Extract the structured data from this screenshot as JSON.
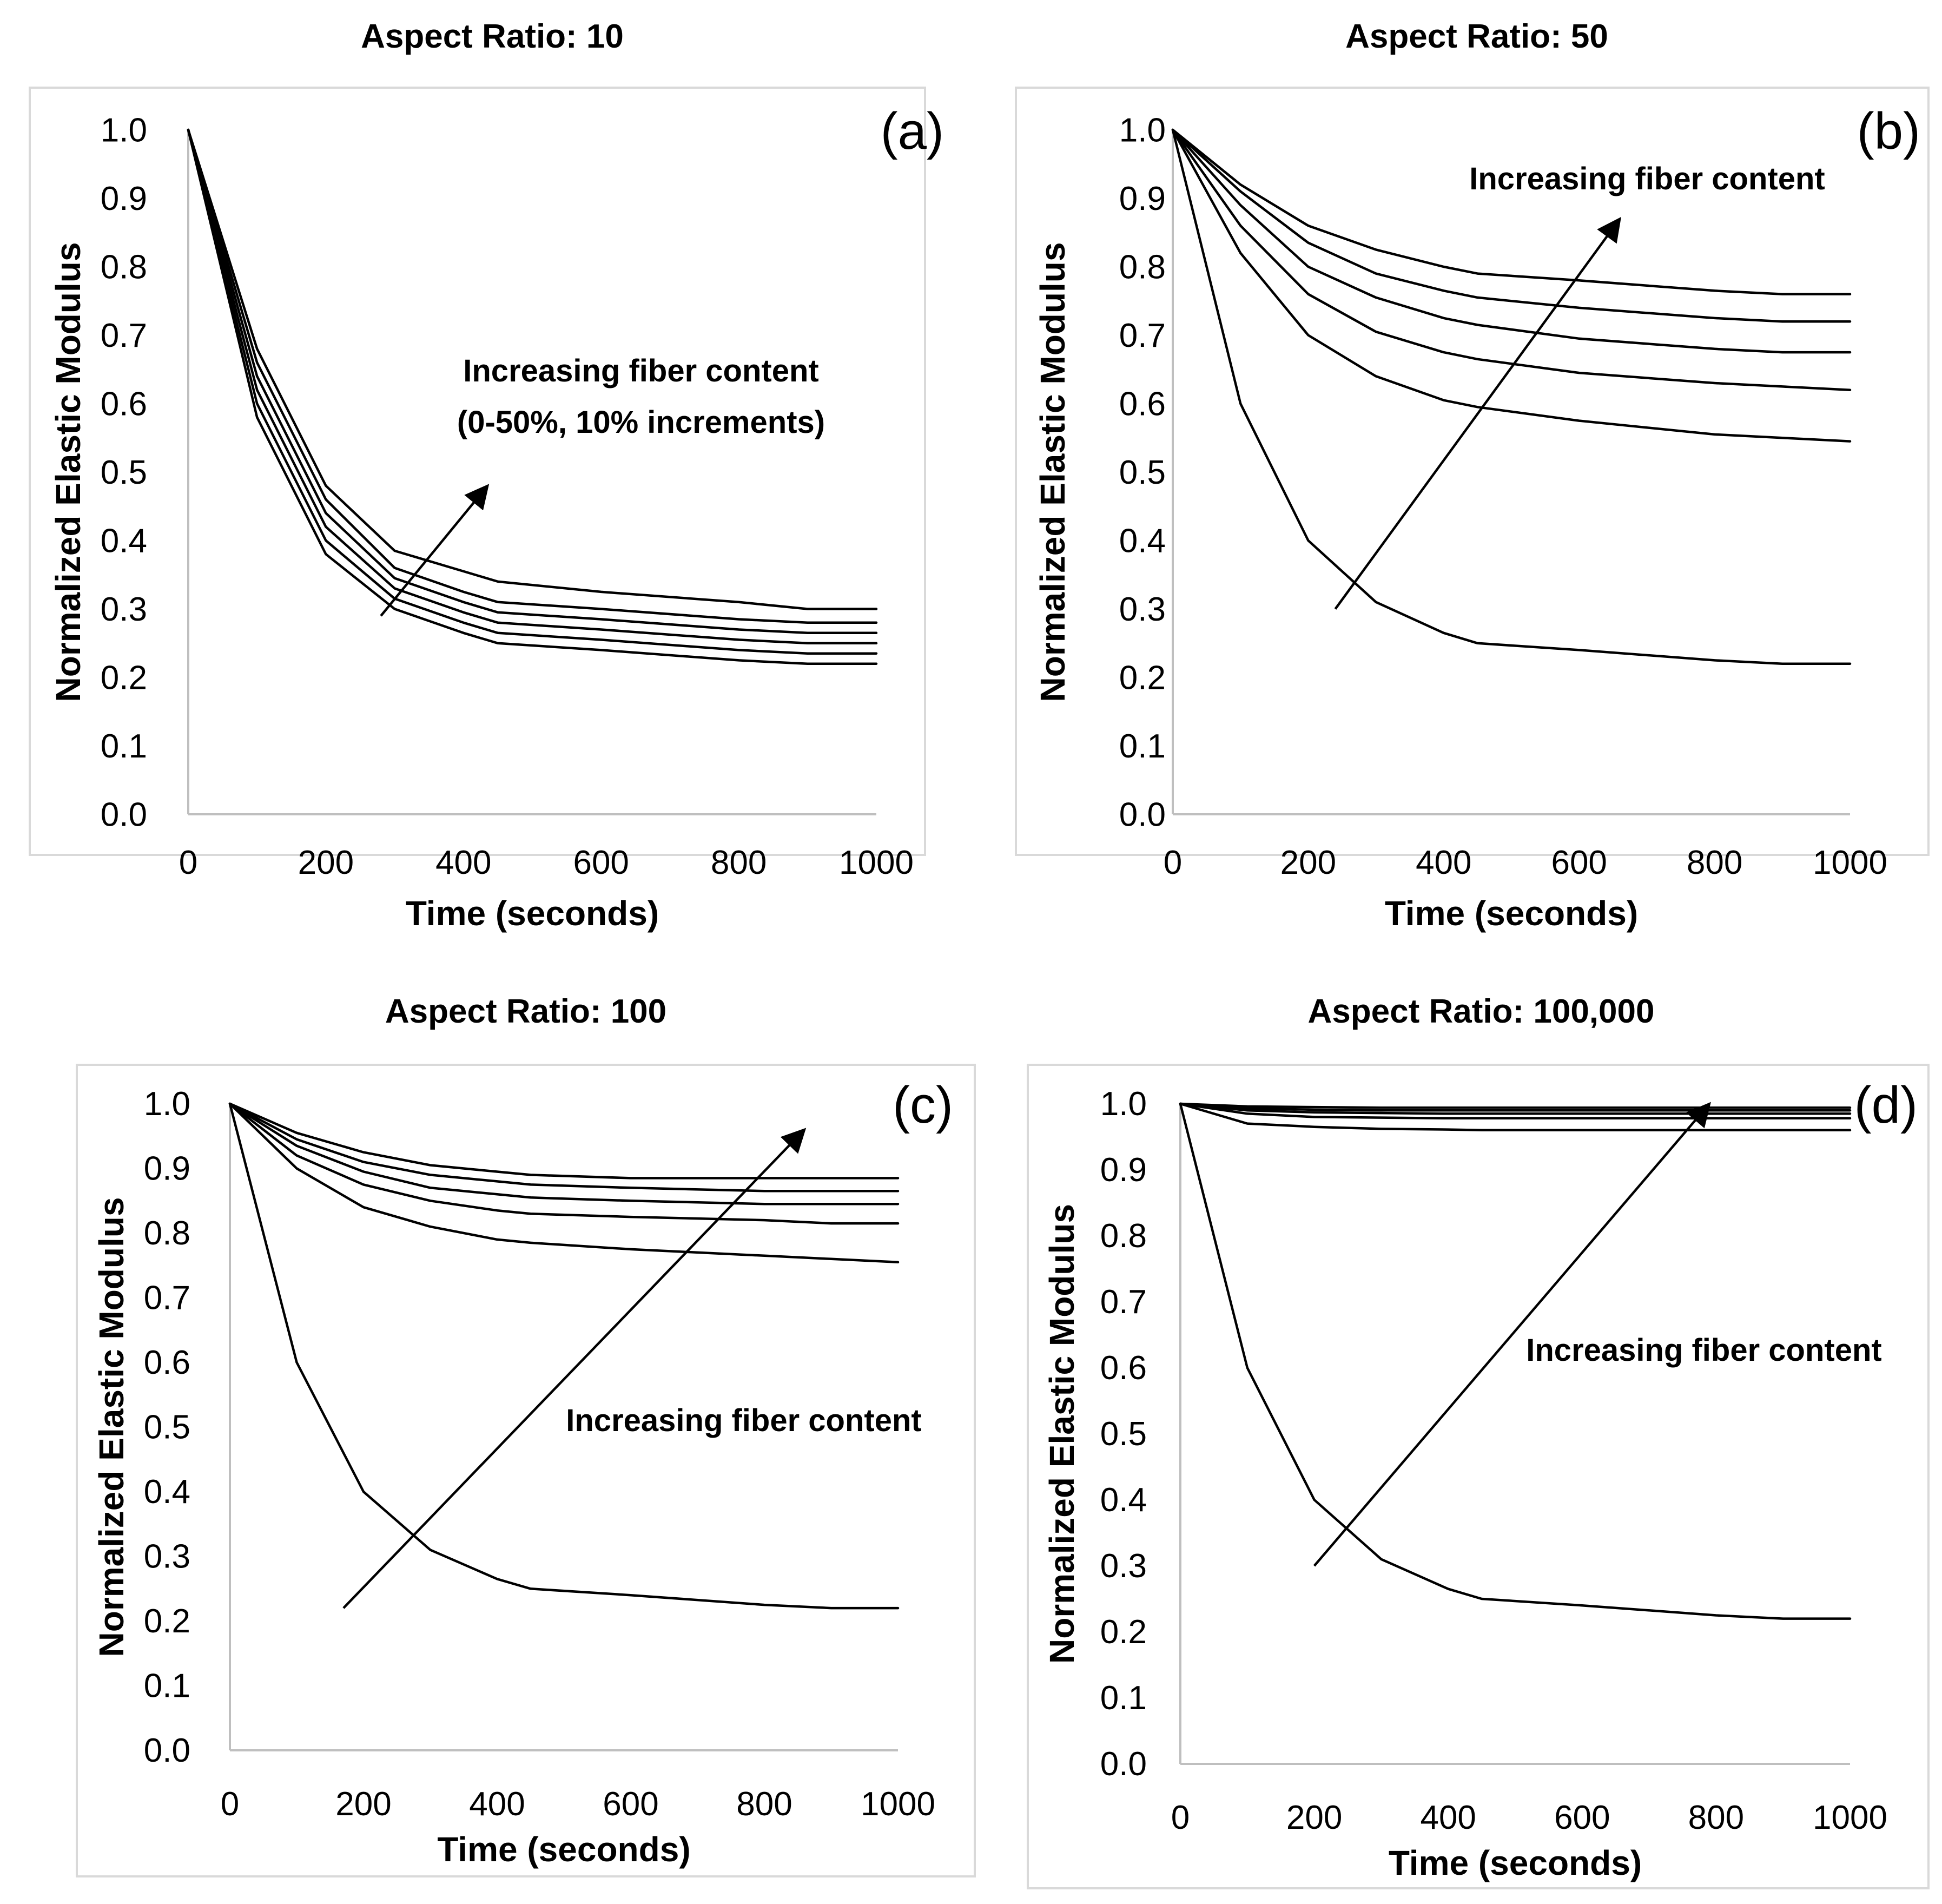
{
  "chart_data": [
    {
      "type": "line",
      "title": "Aspect Ratio: 10",
      "panel_label": "(a)",
      "xlabel": "Time (seconds)",
      "ylabel": "Normalized Elastic Modulus",
      "xlim": [
        0,
        1000
      ],
      "ylim": [
        0,
        1.0
      ],
      "xticks": [
        0,
        200,
        400,
        600,
        800,
        1000
      ],
      "yticks": [
        0.0,
        0.1,
        0.2,
        0.3,
        0.4,
        0.5,
        0.6,
        0.7,
        0.8,
        0.9,
        1.0
      ],
      "grid": false,
      "annotation": [
        "Increasing fiber content",
        "(0-50%, 10% increments)"
      ],
      "arrow": {
        "from": [
          280,
          0.29
        ],
        "to": [
          435,
          0.48
        ]
      },
      "x": [
        0,
        100,
        200,
        300,
        400,
        450,
        600,
        800,
        900,
        1000
      ],
      "series": [
        {
          "values": [
            1.0,
            0.58,
            0.38,
            0.3,
            0.265,
            0.25,
            0.24,
            0.225,
            0.22,
            0.22
          ]
        },
        {
          "values": [
            1.0,
            0.6,
            0.4,
            0.315,
            0.28,
            0.265,
            0.255,
            0.24,
            0.235,
            0.235
          ]
        },
        {
          "values": [
            1.0,
            0.62,
            0.42,
            0.33,
            0.295,
            0.28,
            0.27,
            0.255,
            0.25,
            0.25
          ]
        },
        {
          "values": [
            1.0,
            0.64,
            0.44,
            0.345,
            0.31,
            0.295,
            0.285,
            0.27,
            0.265,
            0.265
          ]
        },
        {
          "values": [
            1.0,
            0.66,
            0.46,
            0.36,
            0.325,
            0.31,
            0.3,
            0.285,
            0.28,
            0.28
          ]
        },
        {
          "values": [
            1.0,
            0.68,
            0.48,
            0.385,
            0.355,
            0.34,
            0.325,
            0.31,
            0.3,
            0.3
          ]
        }
      ]
    },
    {
      "type": "line",
      "title": "Aspect Ratio: 50",
      "panel_label": "(b)",
      "xlabel": "Time (seconds)",
      "ylabel": "Normalized Elastic Modulus",
      "xlim": [
        0,
        1000
      ],
      "ylim": [
        0,
        1.0
      ],
      "xticks": [
        0,
        200,
        400,
        600,
        800,
        1000
      ],
      "yticks": [
        0.0,
        0.1,
        0.2,
        0.3,
        0.4,
        0.5,
        0.6,
        0.7,
        0.8,
        0.9,
        1.0
      ],
      "grid": false,
      "annotation": [
        "Increasing fiber content"
      ],
      "arrow": {
        "from": [
          240,
          0.3
        ],
        "to": [
          660,
          0.87
        ]
      },
      "x": [
        0,
        100,
        200,
        300,
        400,
        450,
        600,
        800,
        900,
        1000
      ],
      "series": [
        {
          "values": [
            1.0,
            0.6,
            0.4,
            0.31,
            0.265,
            0.25,
            0.24,
            0.225,
            0.22,
            0.22
          ]
        },
        {
          "values": [
            1.0,
            0.82,
            0.7,
            0.64,
            0.605,
            0.595,
            0.575,
            0.555,
            0.55,
            0.545
          ]
        },
        {
          "values": [
            1.0,
            0.86,
            0.76,
            0.705,
            0.675,
            0.665,
            0.645,
            0.63,
            0.625,
            0.62
          ]
        },
        {
          "values": [
            1.0,
            0.89,
            0.8,
            0.755,
            0.725,
            0.715,
            0.695,
            0.68,
            0.675,
            0.675
          ]
        },
        {
          "values": [
            1.0,
            0.91,
            0.835,
            0.79,
            0.765,
            0.755,
            0.74,
            0.725,
            0.72,
            0.72
          ]
        },
        {
          "values": [
            1.0,
            0.92,
            0.86,
            0.825,
            0.8,
            0.79,
            0.78,
            0.765,
            0.76,
            0.76
          ]
        }
      ]
    },
    {
      "type": "line",
      "title": "Aspect Ratio: 100",
      "panel_label": "(c)",
      "xlabel": "Time (seconds)",
      "ylabel": "Normalized Elastic Modulus",
      "xlim": [
        0,
        1000
      ],
      "ylim": [
        0,
        1.0
      ],
      "xticks": [
        0,
        200,
        400,
        600,
        800,
        1000
      ],
      "yticks": [
        0.0,
        0.1,
        0.2,
        0.3,
        0.4,
        0.5,
        0.6,
        0.7,
        0.8,
        0.9,
        1.0
      ],
      "grid": false,
      "annotation": [
        "Increasing fiber content"
      ],
      "arrow": {
        "from": [
          170,
          0.22
        ],
        "to": [
          860,
          0.96
        ]
      },
      "x": [
        0,
        100,
        200,
        300,
        400,
        450,
        600,
        800,
        900,
        1000
      ],
      "series": [
        {
          "values": [
            1.0,
            0.6,
            0.4,
            0.31,
            0.265,
            0.25,
            0.24,
            0.225,
            0.22,
            0.22
          ]
        },
        {
          "values": [
            1.0,
            0.9,
            0.84,
            0.81,
            0.79,
            0.785,
            0.775,
            0.765,
            0.76,
            0.755
          ]
        },
        {
          "values": [
            1.0,
            0.92,
            0.875,
            0.85,
            0.835,
            0.83,
            0.825,
            0.82,
            0.815,
            0.815
          ]
        },
        {
          "values": [
            1.0,
            0.935,
            0.895,
            0.87,
            0.86,
            0.855,
            0.85,
            0.845,
            0.845,
            0.845
          ]
        },
        {
          "values": [
            1.0,
            0.945,
            0.91,
            0.89,
            0.88,
            0.875,
            0.87,
            0.865,
            0.865,
            0.865
          ]
        },
        {
          "values": [
            1.0,
            0.955,
            0.925,
            0.905,
            0.895,
            0.89,
            0.885,
            0.885,
            0.885,
            0.885
          ]
        }
      ]
    },
    {
      "type": "line",
      "title": "Aspect Ratio: 100,000",
      "panel_label": "(d)",
      "xlabel": "Time (seconds)",
      "ylabel": "Normalized Elastic Modulus",
      "xlim": [
        0,
        1000
      ],
      "ylim": [
        0,
        1.0
      ],
      "xticks": [
        0,
        200,
        400,
        600,
        800,
        1000
      ],
      "yticks": [
        0.0,
        0.1,
        0.2,
        0.3,
        0.4,
        0.5,
        0.6,
        0.7,
        0.8,
        0.9,
        1.0
      ],
      "grid": false,
      "annotation": [
        "Increasing fiber content"
      ],
      "arrow": {
        "from": [
          200,
          0.3
        ],
        "to": [
          790,
          1.0
        ]
      },
      "x": [
        0,
        100,
        200,
        300,
        400,
        450,
        600,
        800,
        900,
        1000
      ],
      "series": [
        {
          "values": [
            1.0,
            0.6,
            0.4,
            0.31,
            0.265,
            0.25,
            0.24,
            0.225,
            0.22,
            0.22
          ]
        },
        {
          "values": [
            1.0,
            0.97,
            0.965,
            0.962,
            0.961,
            0.96,
            0.96,
            0.96,
            0.96,
            0.96
          ]
        },
        {
          "values": [
            1.0,
            0.985,
            0.98,
            0.979,
            0.978,
            0.978,
            0.978,
            0.978,
            0.978,
            0.978
          ]
        },
        {
          "values": [
            1.0,
            0.99,
            0.987,
            0.986,
            0.985,
            0.985,
            0.985,
            0.985,
            0.985,
            0.985
          ]
        },
        {
          "values": [
            1.0,
            0.993,
            0.991,
            0.99,
            0.99,
            0.99,
            0.99,
            0.99,
            0.99,
            0.99
          ]
        },
        {
          "values": [
            1.0,
            0.996,
            0.995,
            0.994,
            0.994,
            0.994,
            0.994,
            0.994,
            0.994,
            0.994
          ]
        }
      ]
    }
  ]
}
